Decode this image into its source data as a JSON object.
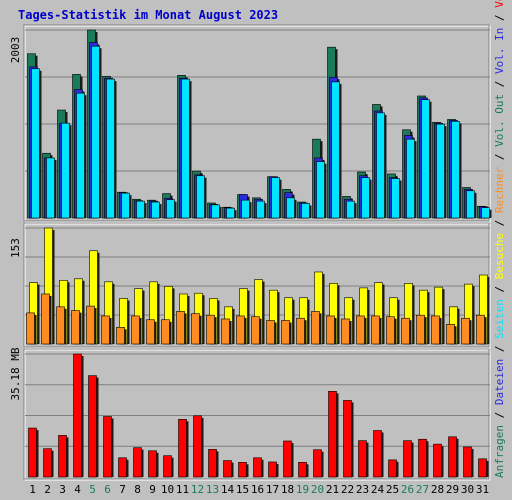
{
  "chart_data": {
    "type": "bar",
    "title": "Tages-Statistik im Monat August 2023",
    "categories": [
      "1",
      "2",
      "3",
      "4",
      "5",
      "6",
      "7",
      "8",
      "9",
      "10",
      "11",
      "12",
      "13",
      "14",
      "15",
      "16",
      "17",
      "18",
      "19",
      "20",
      "21",
      "22",
      "23",
      "24",
      "25",
      "26",
      "27",
      "28",
      "29",
      "30",
      "31"
    ],
    "weekend_days": [
      "5",
      "6",
      "12",
      "13",
      "19",
      "20",
      "26",
      "27"
    ],
    "panels": [
      {
        "id": "requests",
        "max_label": "2003",
        "ylim": [
          0,
          2003
        ],
        "series": [
          {
            "name": "Anfragen",
            "color": "#1a7a5a",
            "values": [
              1750,
              690,
              1150,
              1530,
              2003,
              1510,
              275,
              200,
              190,
              260,
              1520,
              500,
              160,
              115,
              250,
              215,
              440,
              305,
              170,
              840,
              1820,
              230,
              490,
              1210,
              470,
              940,
              1300,
              1020,
              1050,
              325,
              125
            ]
          },
          {
            "name": "Dateien",
            "color": "#2b2be0",
            "values": [
              1610,
              640,
              1010,
              1370,
              1870,
              1490,
              270,
              185,
              180,
              210,
              1490,
              460,
              145,
              110,
              250,
              200,
              440,
              270,
              160,
              640,
              1500,
              200,
              450,
              1140,
              430,
              880,
              1280,
              1010,
              1040,
              305,
              120
            ]
          },
          {
            "name": "Seiten",
            "color": "#00e5ff",
            "values": [
              1590,
              640,
              1010,
              1330,
              1830,
              1480,
              265,
              180,
              170,
              195,
              1480,
              450,
              140,
              105,
              190,
              180,
              430,
              215,
              155,
              600,
              1450,
              180,
              430,
              1120,
              420,
              840,
              1260,
              1000,
              1030,
              290,
              110
            ]
          }
        ]
      },
      {
        "id": "visits",
        "max_label": "153",
        "ylim": [
          0,
          153
        ],
        "series": [
          {
            "name": "Besuche",
            "color": "#ffff00",
            "values": [
              81,
              153,
              84,
              86,
              123,
              82,
              60,
              73,
              82,
              76,
              66,
              67,
              60,
              49,
              73,
              85,
              71,
              61,
              61,
              95,
              80,
              61,
              74,
              81,
              61,
              80,
              71,
              75,
              49,
              79,
              91
            ]
          },
          {
            "name": "Rechner",
            "color": "#ff8c1e",
            "values": [
              41,
              66,
              49,
              44,
              50,
              37,
              22,
              37,
              32,
              32,
              43,
              40,
              38,
              33,
              37,
              36,
              31,
              31,
              34,
              43,
              37,
              33,
              37,
              37,
              36,
              34,
              38,
              37,
              26,
              34,
              38
            ]
          }
        ]
      },
      {
        "id": "volume",
        "max_label": "35.18 MB",
        "ylim": [
          0,
          35.18
        ],
        "series": [
          {
            "name": "Volumen",
            "color": "#ff0000",
            "values": [
              14.0,
              8.1,
              11.9,
              35.18,
              29.0,
              17.3,
              5.5,
              8.4,
              7.5,
              6.1,
              16.5,
              17.5,
              7.9,
              4.7,
              4.2,
              5.5,
              4.3,
              10.3,
              4.2,
              7.8,
              24.5,
              21.9,
              10.4,
              13.3,
              4.9,
              10.4,
              10.8,
              9.4,
              11.5,
              8.6,
              5.2
            ]
          },
          {
            "name": "Vol. In",
            "color": "#2b2be0",
            "values": []
          },
          {
            "name": "Vol. Out",
            "color": "#1a7a5a",
            "values": []
          }
        ]
      }
    ],
    "legend_right": [
      {
        "text": "Anfragen",
        "color": "#1a7a5a"
      },
      {
        "text": "/",
        "color": "#000000"
      },
      {
        "text": "Dateien",
        "color": "#2b2be0"
      },
      {
        "text": "/",
        "color": "#000000"
      },
      {
        "text": "Seiten",
        "color": "#00e5ff"
      },
      {
        "text": "/",
        "color": "#000000"
      },
      {
        "text": "Besuche",
        "color": "#ffff00"
      },
      {
        "text": "/",
        "color": "#000000"
      },
      {
        "text": "Rechner",
        "color": "#ff8c1e"
      },
      {
        "text": "/",
        "color": "#000000"
      },
      {
        "text": "Vol. Out",
        "color": "#1a7a5a"
      },
      {
        "text": "/",
        "color": "#000000"
      },
      {
        "text": "Vol. In",
        "color": "#2b2be0"
      },
      {
        "text": "/",
        "color": "#000000"
      },
      {
        "text": "Volumen",
        "color": "#ff0000"
      }
    ],
    "colors": {
      "background": "#c0c0c0",
      "title": "#0000cc",
      "weekday_label": "#000000",
      "weekend_label": "#1a7a5a"
    }
  }
}
